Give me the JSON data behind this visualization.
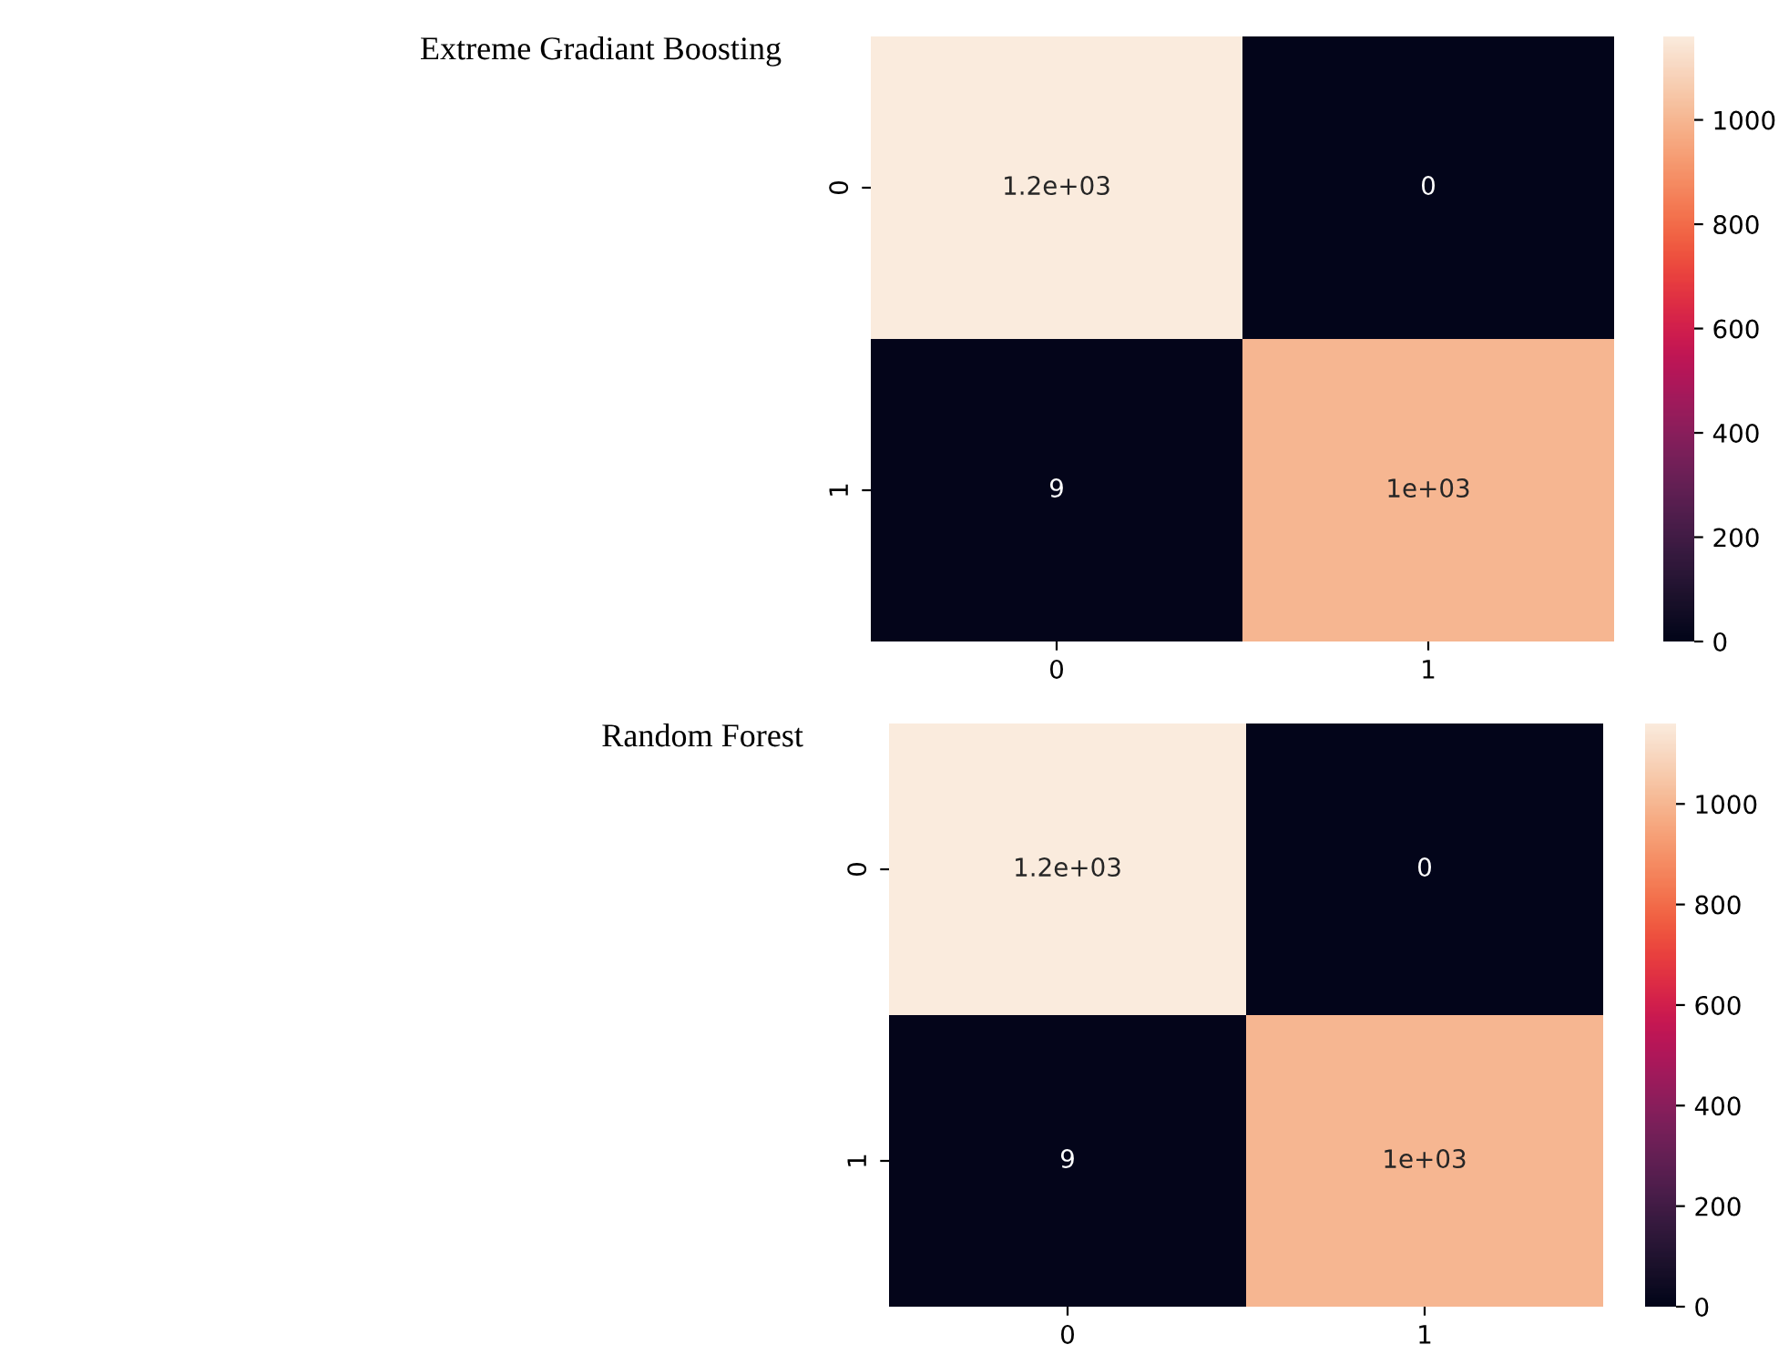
{
  "chart_data": [
    {
      "type": "heatmap",
      "title": "Extreme Gradiant Boosting",
      "categories": [
        "0",
        "1"
      ],
      "y_categories": [
        "0",
        "1"
      ],
      "cells": [
        [
          1160,
          0
        ],
        [
          9,
          1000
        ]
      ],
      "cell_labels": [
        [
          "1.2e+03",
          "0"
        ],
        [
          "9",
          "1e+03"
        ]
      ],
      "clim": [
        0,
        1160
      ],
      "cticks": [
        0,
        200,
        400,
        600,
        800,
        1000
      ]
    },
    {
      "type": "heatmap",
      "title": "Random Forest",
      "categories": [
        "0",
        "1"
      ],
      "y_categories": [
        "0",
        "1"
      ],
      "cells": [
        [
          1160,
          0
        ],
        [
          9,
          1000
        ]
      ],
      "cell_labels": [
        [
          "1.2e+03",
          "0"
        ],
        [
          "9",
          "1e+03"
        ]
      ],
      "clim": [
        0,
        1160
      ],
      "cticks": [
        0,
        200,
        400,
        600,
        800,
        1000
      ]
    }
  ]
}
